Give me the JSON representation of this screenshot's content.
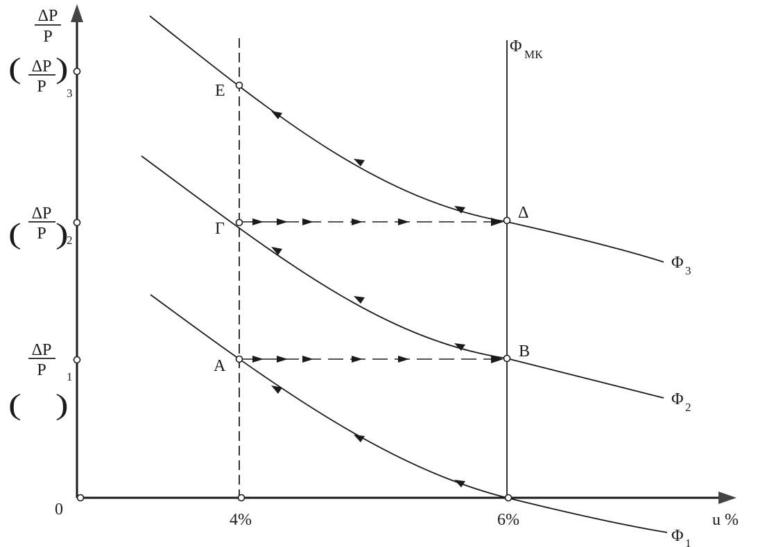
{
  "axes": {
    "y_label_num": "ΔP",
    "y_label_den": "P",
    "origin_label": "0",
    "x_label": "u %",
    "x_ticks": [
      "4%",
      "6%"
    ],
    "y_ticks": [
      {
        "num": "ΔP",
        "den": "P",
        "sub": "1"
      },
      {
        "num": "ΔP",
        "den": "P",
        "sub": "2"
      },
      {
        "num": "ΔP",
        "den": "P",
        "sub": "3"
      }
    ]
  },
  "lines": {
    "vertical_long_run": {
      "base": "Φ",
      "sub": "МК"
    }
  },
  "curves": [
    {
      "base": "Φ",
      "sub": "1"
    },
    {
      "base": "Φ",
      "sub": "2"
    },
    {
      "base": "Φ",
      "sub": "3"
    }
  ],
  "points": [
    "A",
    "B",
    "Γ",
    "Δ",
    "E"
  ],
  "colors": {
    "ink": "#1a1a1a",
    "axis_fill": "#444444",
    "background": "#ffffff"
  }
}
